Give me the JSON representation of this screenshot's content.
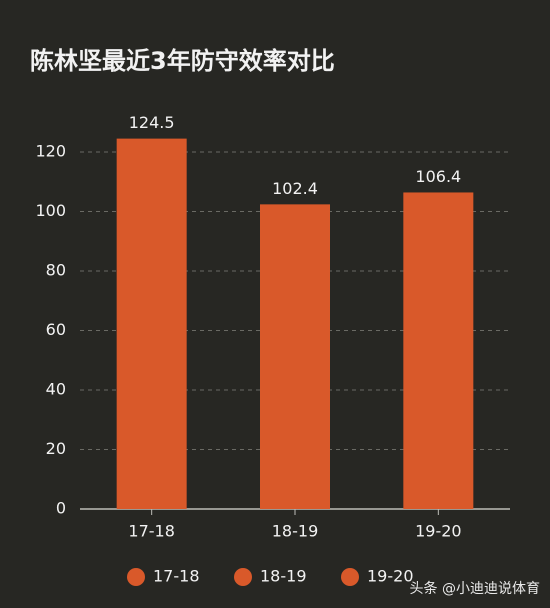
{
  "chart_data": {
    "type": "bar",
    "title": "陈林坚最近3年防守效率对比",
    "categories": [
      "17-18",
      "18-19",
      "19-20"
    ],
    "values": [
      124.5,
      102.4,
      106.4
    ],
    "color": "#d9592a",
    "ylim": [
      0,
      130
    ],
    "yticks": [
      0,
      20,
      40,
      60,
      80,
      100,
      120
    ],
    "grid": true,
    "legend": "bottom",
    "watermark": "头条 @小迪迪说体育"
  }
}
